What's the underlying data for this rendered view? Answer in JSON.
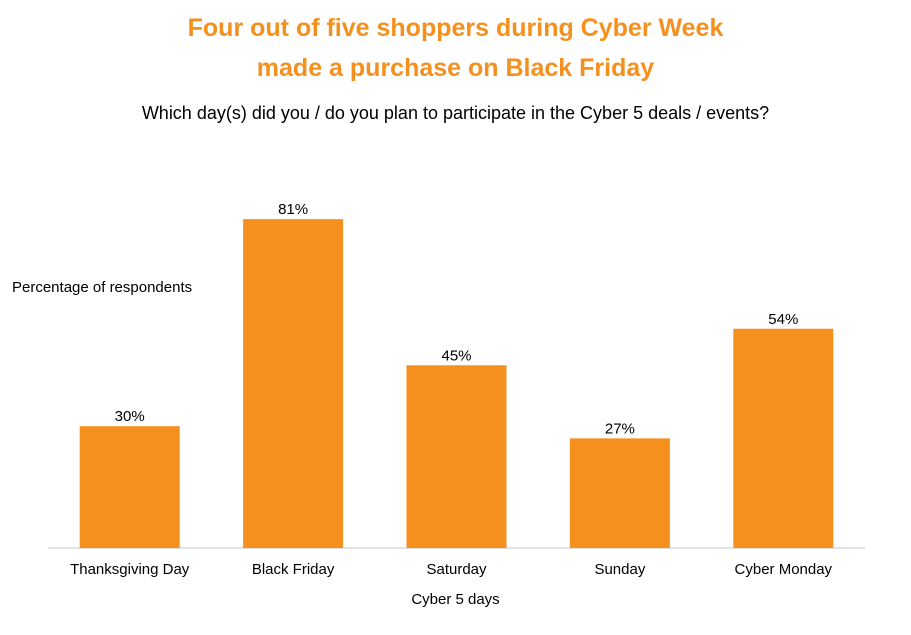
{
  "colors": {
    "title": "#F5901E",
    "bar": "#F5901E",
    "axis": "#D9D9D9",
    "text": "#000000"
  },
  "chart_data": {
    "type": "bar",
    "title_line1": "Four out of five shoppers during Cyber Week",
    "title_line2": "made a purchase on Black Friday",
    "subtitle": "Which day(s) did you / do you plan to participate in the Cyber 5 deals / events?",
    "xlabel": "Cyber 5 days",
    "ylabel": "Percentage of respondents",
    "categories": [
      "Thanksgiving Day",
      "Black Friday",
      "Saturday",
      "Sunday",
      "Cyber Monday"
    ],
    "values": [
      30,
      81,
      45,
      27,
      54
    ],
    "data_labels": [
      "30%",
      "81%",
      "45%",
      "27%",
      "54%"
    ],
    "ylim": [
      0,
      100
    ],
    "grid": false,
    "legend": "none"
  }
}
